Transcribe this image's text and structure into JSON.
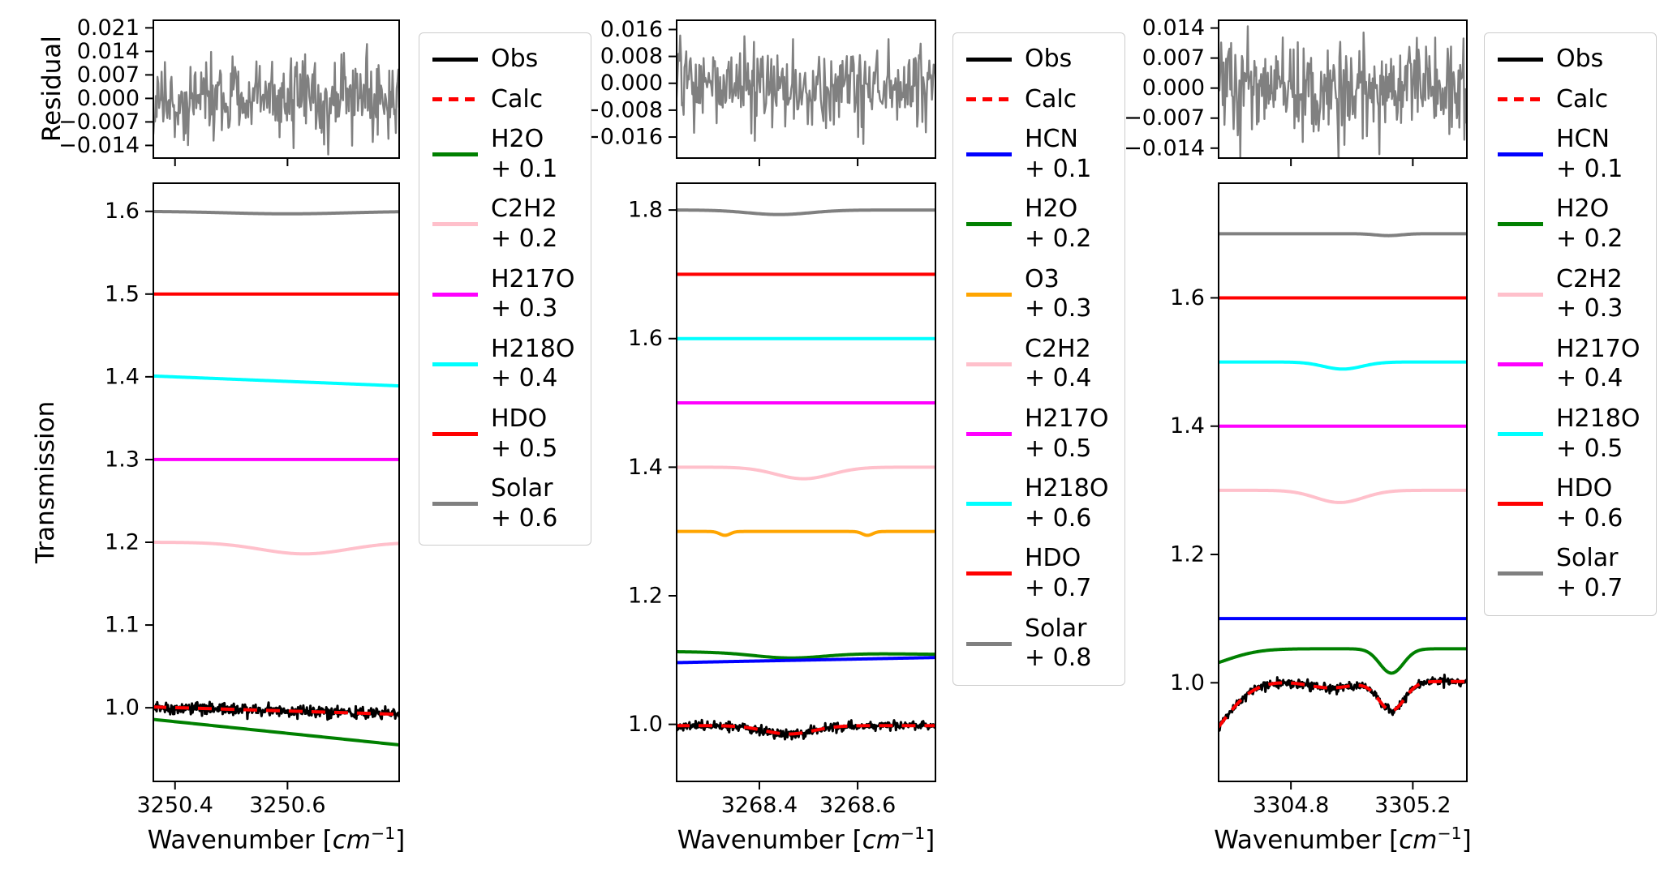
{
  "labels": {
    "residual_ylabel": "Residual",
    "transmission_ylabel": "Transmission",
    "xlabel_pre": "Wavenumber [",
    "xlabel_math": "cm",
    "xlabel_sup": "−1",
    "xlabel_post": "]"
  },
  "chart_data": [
    {
      "type": "line",
      "title": "",
      "residual": {
        "ylim": [
          -0.018,
          0.0235
        ],
        "noise_std": 0.0062,
        "seed": 101,
        "color": "#808080",
        "yticks": [
          {
            "v": 0.021,
            "label": "0.021"
          },
          {
            "v": 0.014,
            "label": "0.014"
          },
          {
            "v": 0.007,
            "label": "0.007"
          },
          {
            "v": 0.0,
            "label": "0.000"
          },
          {
            "v": -0.007,
            "label": "−0.007"
          },
          {
            "v": -0.014,
            "label": "−0.014"
          }
        ]
      },
      "main": {
        "xlim": [
          3250.36,
          3250.8
        ],
        "ylim": [
          0.91,
          1.635
        ],
        "xticks": [
          {
            "v": 3250.4,
            "label": "3250.4"
          },
          {
            "v": 3250.6,
            "label": "3250.6"
          }
        ],
        "yticks": [
          {
            "v": 1.0,
            "label": "1.0"
          },
          {
            "v": 1.1,
            "label": "1.1"
          },
          {
            "v": 1.2,
            "label": "1.2"
          },
          {
            "v": 1.3,
            "label": "1.3"
          },
          {
            "v": 1.4,
            "label": "1.4"
          },
          {
            "v": 1.5,
            "label": "1.5"
          },
          {
            "v": 1.6,
            "label": "1.6"
          }
        ],
        "series": [
          {
            "name": "Solar + 0.6",
            "color": "#808080",
            "base": 1.6,
            "slope": 0,
            "lw": 4,
            "dips": [
              {
                "c": 3250.6,
                "w": 0.15,
                "d": 0.003
              }
            ]
          },
          {
            "name": "HDO + 0.5",
            "color": "#ff0000",
            "base": 1.5,
            "slope": 0,
            "lw": 4,
            "dips": []
          },
          {
            "name": "H218O + 0.4",
            "color": "#00ffff",
            "base": 1.401,
            "slope": -0.012,
            "lw": 4,
            "dips": []
          },
          {
            "name": "H217O + 0.3",
            "color": "#ff00ff",
            "base": 1.3,
            "slope": 0,
            "lw": 4,
            "dips": []
          },
          {
            "name": "C2H2 + 0.2",
            "color": "#ffc0cb",
            "base": 1.2,
            "slope": 0,
            "lw": 4,
            "dips": [
              {
                "c": 3250.63,
                "w": 0.11,
                "d": 0.014
              }
            ]
          },
          {
            "name": "H2O + 0.1",
            "color": "#008000",
            "base": 0.986,
            "slope": -0.031,
            "lw": 4,
            "dips": []
          },
          {
            "name": "Obs",
            "color": "#000000",
            "base": 1.001,
            "slope": -0.009,
            "lw": 3,
            "dips": [],
            "noise": 0.0035,
            "seed": 11
          },
          {
            "name": "Calc",
            "color": "#ff0000",
            "base": 1.001,
            "slope": -0.009,
            "lw": 4,
            "dips": [],
            "dash": true
          }
        ]
      },
      "legend": [
        {
          "label": "Obs",
          "color": "#000000"
        },
        {
          "label": "Calc",
          "color": "#ff0000",
          "dash": true
        },
        {
          "label": "H2O",
          "offset": "+ 0.1",
          "color": "#008000"
        },
        {
          "label": "C2H2",
          "offset": "+ 0.2",
          "color": "#ffc0cb"
        },
        {
          "label": "H217O",
          "offset": "+ 0.3",
          "color": "#ff00ff"
        },
        {
          "label": "H218O",
          "offset": "+ 0.4",
          "color": "#00ffff"
        },
        {
          "label": "HDO",
          "offset": "+ 0.5",
          "color": "#ff0000"
        },
        {
          "label": "Solar",
          "offset": "+ 0.6",
          "color": "#808080"
        }
      ]
    },
    {
      "type": "line",
      "title": "",
      "residual": {
        "ylim": [
          -0.0225,
          0.019
        ],
        "noise_std": 0.0062,
        "seed": 202,
        "color": "#808080",
        "yticks": [
          {
            "v": 0.016,
            "label": "0.016"
          },
          {
            "v": 0.008,
            "label": "0.008"
          },
          {
            "v": 0.0,
            "label": "0.000"
          },
          {
            "v": -0.008,
            "label": "−0.008"
          },
          {
            "v": -0.016,
            "label": "−0.016"
          }
        ]
      },
      "main": {
        "xlim": [
          3268.23,
          3268.76
        ],
        "ylim": [
          0.91,
          1.843
        ],
        "xticks": [
          {
            "v": 3268.4,
            "label": "3268.4"
          },
          {
            "v": 3268.6,
            "label": "3268.6"
          }
        ],
        "yticks": [
          {
            "v": 1.0,
            "label": "1.0"
          },
          {
            "v": 1.2,
            "label": "1.2"
          },
          {
            "v": 1.4,
            "label": "1.4"
          },
          {
            "v": 1.6,
            "label": "1.6"
          },
          {
            "v": 1.8,
            "label": "1.8"
          }
        ],
        "series": [
          {
            "name": "Solar + 0.8",
            "color": "#808080",
            "base": 1.8,
            "slope": 0,
            "lw": 4,
            "dips": [
              {
                "c": 3268.44,
                "w": 0.09,
                "d": 0.007
              }
            ]
          },
          {
            "name": "HDO + 0.7",
            "color": "#ff0000",
            "base": 1.7,
            "slope": 0,
            "lw": 4,
            "dips": []
          },
          {
            "name": "H218O + 0.6",
            "color": "#00ffff",
            "base": 1.6,
            "slope": 0,
            "lw": 4,
            "dips": []
          },
          {
            "name": "H217O + 0.5",
            "color": "#ff00ff",
            "base": 1.5,
            "slope": 0,
            "lw": 4,
            "dips": []
          },
          {
            "name": "C2H2 + 0.4",
            "color": "#ffc0cb",
            "base": 1.4,
            "slope": 0,
            "lw": 4,
            "dips": [
              {
                "c": 3268.49,
                "w": 0.08,
                "d": 0.018
              }
            ]
          },
          {
            "name": "O3 + 0.3",
            "color": "#ffa500",
            "base": 1.3,
            "slope": 0,
            "lw": 4,
            "dips": [
              {
                "c": 3268.33,
                "w": 0.015,
                "d": 0.006
              },
              {
                "c": 3268.62,
                "w": 0.015,
                "d": 0.006
              }
            ]
          },
          {
            "name": "H2O + 0.2",
            "color": "#008000",
            "base": 1.113,
            "slope": -0.004,
            "lw": 4,
            "dips": [
              {
                "c": 3268.46,
                "w": 0.1,
                "d": 0.008
              }
            ]
          },
          {
            "name": "HCN + 0.1",
            "color": "#0000ff",
            "base": 1.096,
            "slope": 0.008,
            "lw": 4,
            "dips": []
          },
          {
            "name": "Obs",
            "color": "#000000",
            "base": 0.998,
            "slope": 0,
            "lw": 3,
            "dips": [
              {
                "c": 3268.46,
                "w": 0.07,
                "d": 0.013
              }
            ],
            "noise": 0.0035,
            "seed": 12
          },
          {
            "name": "Calc",
            "color": "#ff0000",
            "base": 0.998,
            "slope": 0,
            "lw": 4,
            "dips": [
              {
                "c": 3268.46,
                "w": 0.07,
                "d": 0.013
              }
            ],
            "dash": true
          }
        ]
      },
      "legend": [
        {
          "label": "Obs",
          "color": "#000000"
        },
        {
          "label": "Calc",
          "color": "#ff0000",
          "dash": true
        },
        {
          "label": "HCN",
          "offset": "+ 0.1",
          "color": "#0000ff"
        },
        {
          "label": "H2O",
          "offset": "+ 0.2",
          "color": "#008000"
        },
        {
          "label": "O3",
          "offset": "+ 0.3",
          "color": "#ffa500"
        },
        {
          "label": "C2H2",
          "offset": "+ 0.4",
          "color": "#ffc0cb"
        },
        {
          "label": "H217O",
          "offset": "+ 0.5",
          "color": "#ff00ff"
        },
        {
          "label": "H218O",
          "offset": "+ 0.6",
          "color": "#00ffff"
        },
        {
          "label": "HDO",
          "offset": "+ 0.7",
          "color": "#ff0000"
        },
        {
          "label": "Solar",
          "offset": "+ 0.8",
          "color": "#808080"
        }
      ]
    },
    {
      "type": "line",
      "title": "",
      "residual": {
        "ylim": [
          -0.0165,
          0.016
        ],
        "noise_std": 0.0055,
        "seed": 303,
        "color": "#808080",
        "yticks": [
          {
            "v": 0.014,
            "label": "0.014"
          },
          {
            "v": 0.007,
            "label": "0.007"
          },
          {
            "v": 0.0,
            "label": "0.000"
          },
          {
            "v": -0.007,
            "label": "−0.007"
          },
          {
            "v": -0.014,
            "label": "−0.014"
          }
        ]
      },
      "main": {
        "xlim": [
          3304.56,
          3305.38
        ],
        "ylim": [
          0.845,
          1.78
        ],
        "xticks": [
          {
            "v": 3304.8,
            "label": "3304.8"
          },
          {
            "v": 3305.2,
            "label": "3305.2"
          }
        ],
        "yticks": [
          {
            "v": 1.0,
            "label": "1.0"
          },
          {
            "v": 1.2,
            "label": "1.2"
          },
          {
            "v": 1.4,
            "label": "1.4"
          },
          {
            "v": 1.6,
            "label": "1.6"
          }
        ],
        "series": [
          {
            "name": "Solar + 0.7",
            "color": "#808080",
            "base": 1.7,
            "slope": 0,
            "lw": 4,
            "dips": [
              {
                "c": 3305.12,
                "w": 0.06,
                "d": 0.003
              }
            ]
          },
          {
            "name": "HDO + 0.6",
            "color": "#ff0000",
            "base": 1.6,
            "slope": 0,
            "lw": 4,
            "dips": []
          },
          {
            "name": "H218O + 0.5",
            "color": "#00ffff",
            "base": 1.5,
            "slope": 0,
            "lw": 4,
            "dips": [
              {
                "c": 3304.97,
                "w": 0.09,
                "d": 0.011
              }
            ]
          },
          {
            "name": "H217O + 0.4",
            "color": "#ff00ff",
            "base": 1.4,
            "slope": 0,
            "lw": 4,
            "dips": []
          },
          {
            "name": "C2H2 + 0.3",
            "color": "#ffc0cb",
            "base": 1.3,
            "slope": 0,
            "lw": 4,
            "dips": [
              {
                "c": 3304.96,
                "w": 0.11,
                "d": 0.019
              }
            ]
          },
          {
            "name": "HCN + 0.1",
            "color": "#0000ff",
            "base": 1.1,
            "slope": 0,
            "lw": 4,
            "dips": []
          },
          {
            "name": "H2O + 0.2",
            "color": "#008000",
            "base": 1.053,
            "slope": 0,
            "lw": 4,
            "dips": [
              {
                "c": 3304.47,
                "w": 0.16,
                "d": 0.03
              },
              {
                "c": 3305.13,
                "w": 0.055,
                "d": 0.038
              }
            ]
          },
          {
            "name": "Obs",
            "color": "#000000",
            "base": 1.002,
            "slope": 0,
            "lw": 3,
            "dips": [
              {
                "c": 3304.48,
                "w": 0.14,
                "d": 0.1
              },
              {
                "c": 3304.93,
                "w": 0.1,
                "d": 0.01
              },
              {
                "c": 3305.13,
                "w": 0.06,
                "d": 0.045
              }
            ],
            "noise": 0.0035,
            "seed": 13
          },
          {
            "name": "Calc",
            "color": "#ff0000",
            "base": 1.002,
            "slope": 0,
            "lw": 4,
            "dips": [
              {
                "c": 3304.48,
                "w": 0.14,
                "d": 0.1
              },
              {
                "c": 3304.93,
                "w": 0.1,
                "d": 0.01
              },
              {
                "c": 3305.13,
                "w": 0.06,
                "d": 0.045
              }
            ],
            "dash": true
          }
        ]
      },
      "legend": [
        {
          "label": "Obs",
          "color": "#000000"
        },
        {
          "label": "Calc",
          "color": "#ff0000",
          "dash": true
        },
        {
          "label": "HCN",
          "offset": "+ 0.1",
          "color": "#0000ff"
        },
        {
          "label": "H2O",
          "offset": "+ 0.2",
          "color": "#008000"
        },
        {
          "label": "C2H2",
          "offset": "+ 0.3",
          "color": "#ffc0cb"
        },
        {
          "label": "H217O",
          "offset": "+ 0.4",
          "color": "#ff00ff"
        },
        {
          "label": "H218O",
          "offset": "+ 0.5",
          "color": "#00ffff"
        },
        {
          "label": "HDO",
          "offset": "+ 0.6",
          "color": "#ff0000"
        },
        {
          "label": "Solar",
          "offset": "+ 0.7",
          "color": "#808080"
        }
      ]
    }
  ]
}
